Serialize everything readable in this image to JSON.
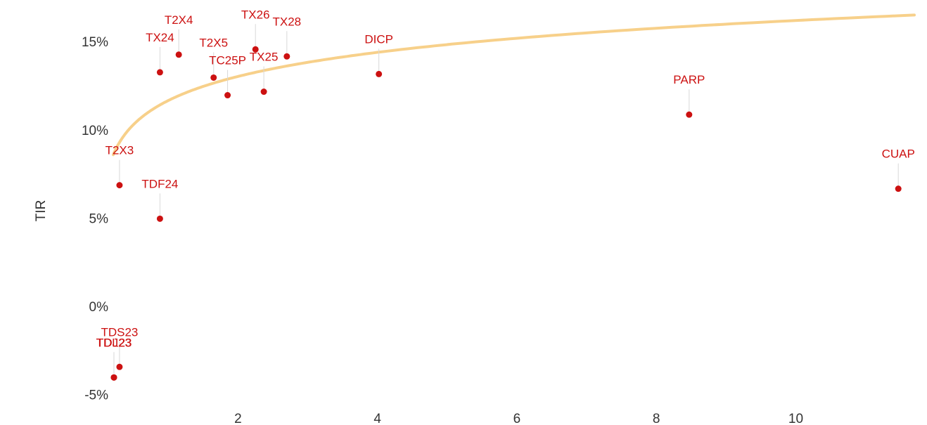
{
  "chart_data": {
    "type": "scatter",
    "ylabel": "TIR",
    "xlabel": "",
    "x_ticks": [
      {
        "value": 2,
        "label": "2"
      },
      {
        "value": 4,
        "label": "4"
      },
      {
        "value": 6,
        "label": "6"
      },
      {
        "value": 8,
        "label": "8"
      },
      {
        "value": 10,
        "label": "10"
      }
    ],
    "y_ticks": [
      {
        "value": 15,
        "label": "15%"
      },
      {
        "value": 10,
        "label": "10%"
      },
      {
        "value": 5,
        "label": "5%"
      },
      {
        "value": 0,
        "label": "0%"
      },
      {
        "value": -5,
        "label": "-5%"
      }
    ],
    "xlim": [
      0.2,
      11.7
    ],
    "ylim": [
      -5.5,
      17
    ],
    "grid": false,
    "point_color": "#cc1111",
    "trend_color": "#f7d08a",
    "trend": {
      "type": "logarithmic",
      "a": 11.7,
      "b": 1.97
    },
    "points": [
      {
        "label": "TX24",
        "x": 0.88,
        "y": 13.3
      },
      {
        "label": "T2X4",
        "x": 1.15,
        "y": 14.3
      },
      {
        "label": "T2X5",
        "x": 1.65,
        "y": 13.0
      },
      {
        "label": "TC25P",
        "x": 1.85,
        "y": 12.0
      },
      {
        "label": "TX26",
        "x": 2.25,
        "y": 14.6
      },
      {
        "label": "TX25",
        "x": 2.37,
        "y": 12.2
      },
      {
        "label": "TX28",
        "x": 2.7,
        "y": 14.2
      },
      {
        "label": "DICP",
        "x": 4.02,
        "y": 13.2
      },
      {
        "label": "PARP",
        "x": 8.47,
        "y": 10.9
      },
      {
        "label": "CUAP",
        "x": 11.47,
        "y": 6.7
      },
      {
        "label": "T2X3",
        "x": 0.3,
        "y": 6.9
      },
      {
        "label": "TDF24",
        "x": 0.88,
        "y": 5.0
      },
      {
        "label": "TDS23",
        "x": 0.3,
        "y": -3.4
      },
      {
        "label": "TDL23",
        "x": 0.22,
        "y": -4.0
      },
      {
        "label": "TDJ23",
        "x": 0.22,
        "y": -4.0
      }
    ]
  }
}
